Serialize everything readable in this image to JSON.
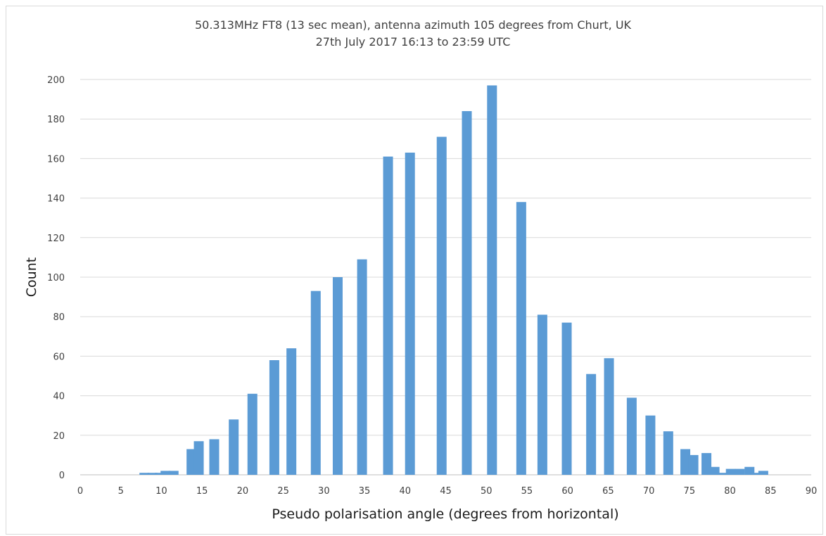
{
  "chart_data": {
    "type": "bar",
    "title": "50.313MHz FT8 (13 sec mean), antenna azimuth 105 degrees from Churt, UK",
    "subtitle": "27th July 2017 16:13 to 23:59 UTC",
    "xlabel": "Pseudo polarisation angle (degrees from horizontal)",
    "ylabel": "Count",
    "xlim": [
      0,
      90
    ],
    "ylim": [
      0,
      200
    ],
    "x_ticks": [
      0,
      5,
      10,
      15,
      20,
      25,
      30,
      35,
      40,
      45,
      50,
      55,
      60,
      65,
      70,
      75,
      80,
      85,
      90
    ],
    "y_ticks": [
      0,
      20,
      40,
      60,
      80,
      100,
      120,
      140,
      160,
      180,
      200
    ],
    "grid": "horizontal",
    "legend": "none",
    "bar_color": "#5b9bd5",
    "series": [
      {
        "x": [
          7.9,
          8.9,
          9.8,
          10.5,
          11.5,
          13.7,
          14.6,
          16.5,
          18.9,
          21.2,
          23.9,
          26.0,
          29.0,
          31.7,
          34.7,
          37.9,
          40.6,
          44.5,
          47.6,
          50.7,
          54.3,
          56.9,
          59.9,
          62.9,
          65.1,
          67.9,
          70.2,
          72.4,
          74.5,
          75.5,
          77.1,
          78.1,
          79.2,
          80.1,
          81.2,
          82.4,
          83.1,
          84.1
        ],
        "values": [
          1,
          1,
          1,
          2,
          2,
          13,
          17,
          18,
          28,
          41,
          58,
          64,
          93,
          100,
          109,
          161,
          163,
          171,
          184,
          197,
          138,
          81,
          77,
          51,
          59,
          39,
          30,
          22,
          13,
          10,
          11,
          4,
          1,
          3,
          3,
          4,
          1,
          2
        ]
      }
    ]
  }
}
